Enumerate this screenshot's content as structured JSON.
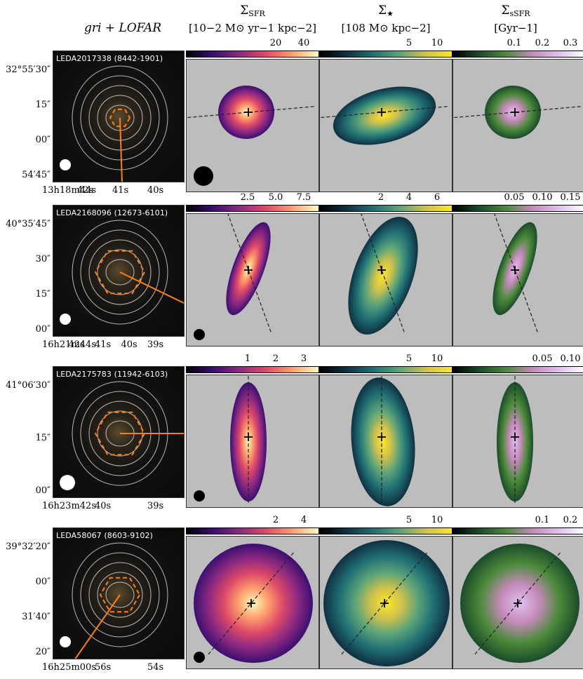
{
  "headers": {
    "col1": "gri + LOFAR",
    "col2_sym": "Σ",
    "col2_sub": "SFR",
    "col2_unit": "[10−2 M⊙ yr−1 kpc−2]",
    "col3_sym": "Σ",
    "col3_sub": "★",
    "col3_unit": "[108 M⊙ kpc−2]",
    "col4_sym": "Σ",
    "col4_sub": "sSFR",
    "col4_unit": "[Gyr−1]"
  },
  "rows": [
    {
      "name": "LEDA2017338 (8442-1901)",
      "ra_ticks": [
        "13h18m44s",
        "42s",
        "41s",
        "40s"
      ],
      "dec_ticks": [
        "32°55′30″",
        "15″",
        "00″",
        "54′45″"
      ],
      "sfr_ticks": [
        "20",
        "40"
      ],
      "mstar_ticks": [
        "5",
        "10"
      ],
      "ssfr_ticks": [
        "0.1",
        "0.2",
        "0.3"
      ]
    },
    {
      "name": "LEDA2168096 (12673-6101)",
      "ra_ticks": [
        "16h21m44s",
        "42s",
        "41s",
        "40s",
        "39s"
      ],
      "dec_ticks": [
        "40°35′45″",
        "30″",
        "15″",
        "00″"
      ],
      "sfr_ticks": [
        "2.5",
        "5.0",
        "7.5"
      ],
      "mstar_ticks": [
        "2",
        "4",
        "6"
      ],
      "ssfr_ticks": [
        "0.05",
        "0.10",
        "0.15"
      ]
    },
    {
      "name": "LEDA2175783 (11942-6103)",
      "ra_ticks": [
        "16h23m42s",
        "40s",
        "39s"
      ],
      "dec_ticks": [
        "41°06′30″",
        "15″",
        "00″"
      ],
      "sfr_ticks": [
        "1",
        "2",
        "3"
      ],
      "mstar_ticks": [
        "5",
        "10"
      ],
      "ssfr_ticks": [
        "0.05",
        "0.10"
      ]
    },
    {
      "name": "LEDA58067 (8603-9102)",
      "ra_ticks": [
        "16h25m00s",
        "56s",
        "54s"
      ],
      "dec_ticks": [
        "39°32′20″",
        "00″",
        "31′40″",
        "20″"
      ],
      "sfr_ticks": [
        "2",
        "4"
      ],
      "mstar_ticks": [
        "5",
        "10"
      ],
      "ssfr_ticks": [
        "0.1",
        "0.2"
      ]
    }
  ],
  "colors": {
    "sfr_cmap": [
      "#000004",
      "#3b0f70",
      "#8c2981",
      "#de4968",
      "#fe9f6d",
      "#fcfdbf"
    ],
    "mstar_cmap": [
      "#000000",
      "#0f3040",
      "#1f6e73",
      "#5aa37a",
      "#cfc14d",
      "#fde725"
    ],
    "ssfr_cmap": [
      "#000000",
      "#1b4b2a",
      "#4b8a3a",
      "#c48ab8",
      "#e0c0f0",
      "#ffffff"
    ],
    "contour": "#d8d8d8",
    "aperture": "#ff7f0e",
    "masked": "#bdbdbd"
  }
}
